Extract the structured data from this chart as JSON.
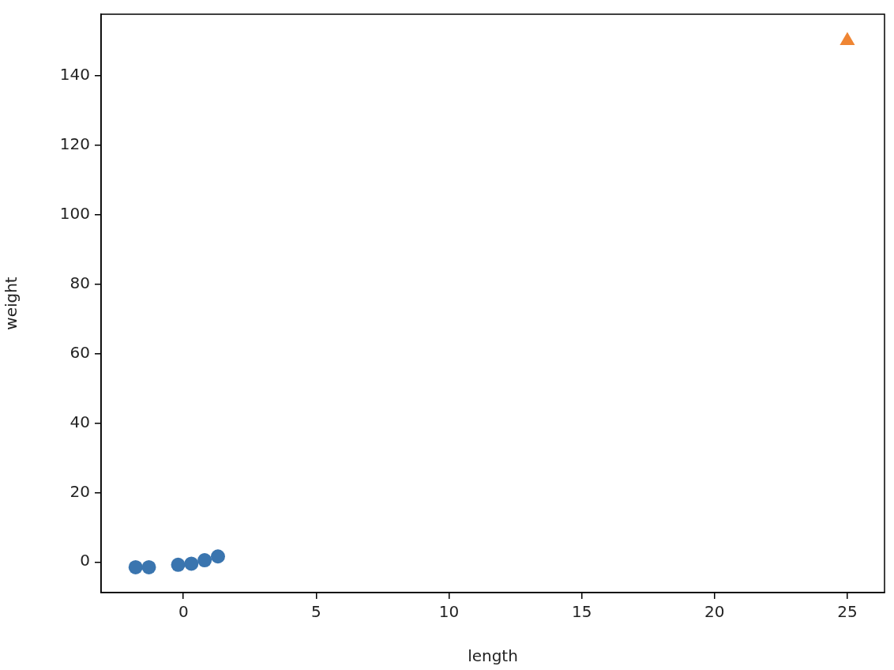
{
  "chart_data": {
    "type": "scatter",
    "xlabel": "length",
    "ylabel": "weight",
    "xlim": [
      -3.1,
      26.4
    ],
    "ylim": [
      -8.8,
      157.6
    ],
    "xticks": [
      0,
      5,
      10,
      15,
      20,
      25
    ],
    "yticks": [
      0,
      20,
      40,
      60,
      80,
      100,
      120,
      140
    ],
    "grid": false,
    "legend": false,
    "series": [
      {
        "color": "#3a75af",
        "marker": "circle",
        "x": [
          -1.8,
          -1.3,
          -0.2,
          0.3,
          0.8,
          1.3
        ],
        "values": [
          -1.5,
          -1.5,
          -0.8,
          -0.5,
          0.5,
          1.6
        ]
      },
      {
        "color": "#ef8533",
        "marker": "triangle",
        "x": [
          25
        ],
        "values": [
          150
        ]
      }
    ]
  }
}
